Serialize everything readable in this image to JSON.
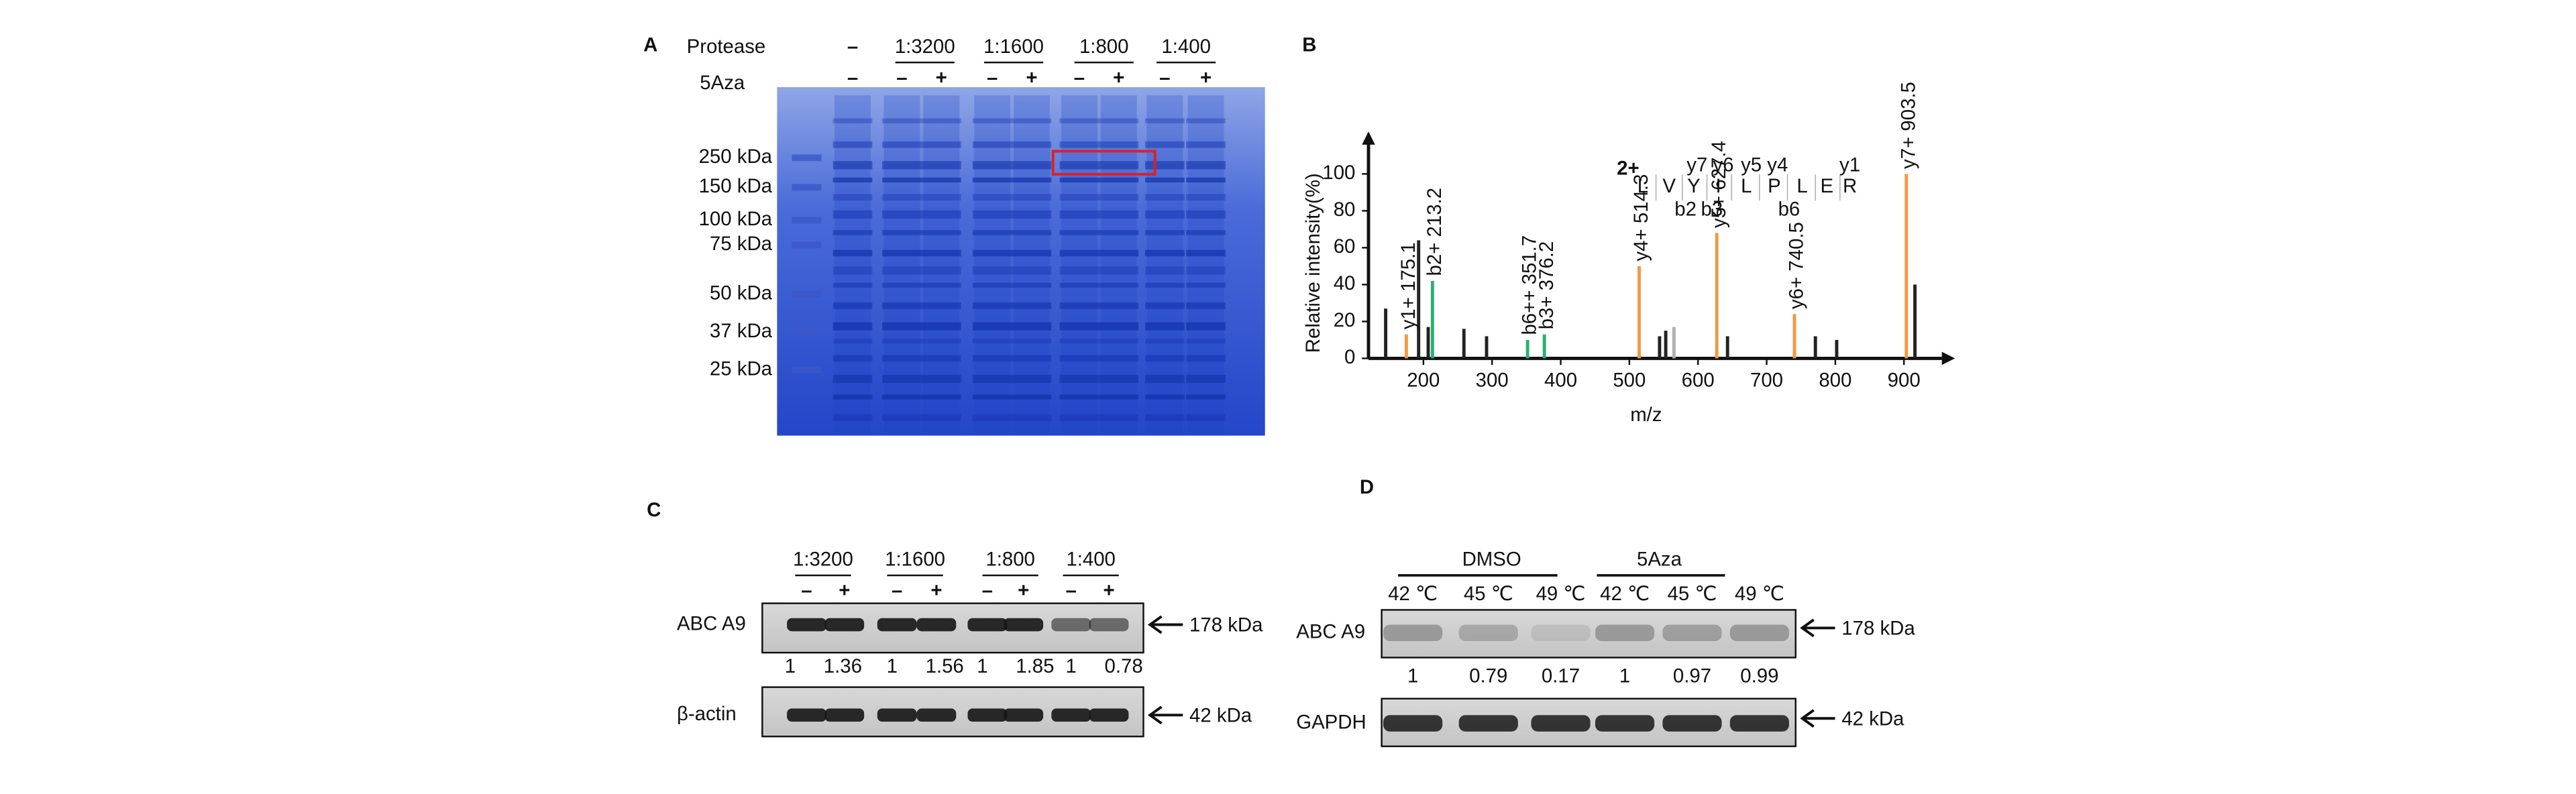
{
  "panel_a": {
    "letter": "A",
    "protease_label": "Protease",
    "aza_label": "5Aza",
    "control": "–",
    "ratios": [
      "1:3200",
      "1:1600",
      "1:800",
      "1:400"
    ],
    "aza_signs": [
      "–",
      "–",
      "+",
      "–",
      "+",
      "–",
      "+",
      "–",
      "+"
    ],
    "markers": [
      "250 kDa",
      "150 kDa",
      "100 kDa",
      "75 kDa",
      "50 kDa",
      "37 kDa",
      "25 kDa"
    ]
  },
  "chart_data": {
    "type": "stem",
    "letter": "B",
    "xlabel": "m/z",
    "ylabel": "Relative intensity(%)",
    "xlim": [
      120,
      960
    ],
    "ylim": [
      0,
      123
    ],
    "xticks": [
      200,
      300,
      400,
      500,
      600,
      700,
      800,
      900
    ],
    "yticks": [
      0,
      20,
      40,
      60,
      80,
      100
    ],
    "series": [
      {
        "color": "#222222",
        "x": [
          145,
          193,
          207,
          259,
          292,
          544,
          553,
          643,
          771,
          802,
          916
        ],
        "values": [
          27,
          64,
          17,
          16,
          12,
          12,
          15,
          12,
          12,
          10,
          40
        ]
      },
      {
        "color": "#f09a45",
        "x": [
          175.1,
          514.3,
          627.4,
          740.5,
          903.5
        ],
        "values": [
          13,
          50,
          68,
          24,
          100
        ],
        "labels": [
          "y1+ 175.1",
          "y4+ 514.3",
          "y5+ 627.4",
          "y6+ 740.5",
          "y7+ 903.5"
        ]
      },
      {
        "color": "#2bb06a",
        "x": [
          213.2,
          351.7,
          376.2
        ],
        "values": [
          42,
          10,
          13
        ],
        "labels": [
          "b2+ 213.2",
          "b6++ 351.7",
          "b3+ 376.2"
        ]
      },
      {
        "color": "#b0b0b0",
        "x": [
          565
        ],
        "values": [
          17
        ]
      }
    ],
    "charge": "2+",
    "sequence": [
      "L",
      "V",
      "Y",
      "I",
      "L",
      "P",
      "L",
      "E",
      "R"
    ],
    "y_ions": [
      "y7",
      "y6",
      "y5",
      "y4",
      "y1"
    ],
    "b_ions": [
      "b2",
      "b3",
      "b6"
    ]
  },
  "panel_c": {
    "letter": "C",
    "ratios": [
      "1:3200",
      "1:1600",
      "1:800",
      "1:400"
    ],
    "signs": [
      "–",
      "+",
      "–",
      "+",
      "–",
      "+",
      "–",
      "+"
    ],
    "rows": [
      {
        "label": "ABC A9",
        "size": "178 kDa"
      },
      {
        "label": "β-actin",
        "size": "42 kDa"
      }
    ],
    "quantification": [
      1,
      1.36,
      1,
      1.56,
      1,
      1.85,
      1,
      0.78
    ]
  },
  "panel_d": {
    "letter": "D",
    "groups": [
      "DMSO",
      "5Aza"
    ],
    "temperatures": [
      "42 ℃",
      "45 ℃",
      "49 ℃",
      "42 ℃",
      "45 ℃",
      "49 ℃"
    ],
    "rows": [
      {
        "label": "ABC A9",
        "size": "178 kDa"
      },
      {
        "label": "GAPDH",
        "size": "42 kDa"
      }
    ],
    "quantification": [
      1,
      0.79,
      0.17,
      1,
      0.97,
      0.99
    ]
  }
}
